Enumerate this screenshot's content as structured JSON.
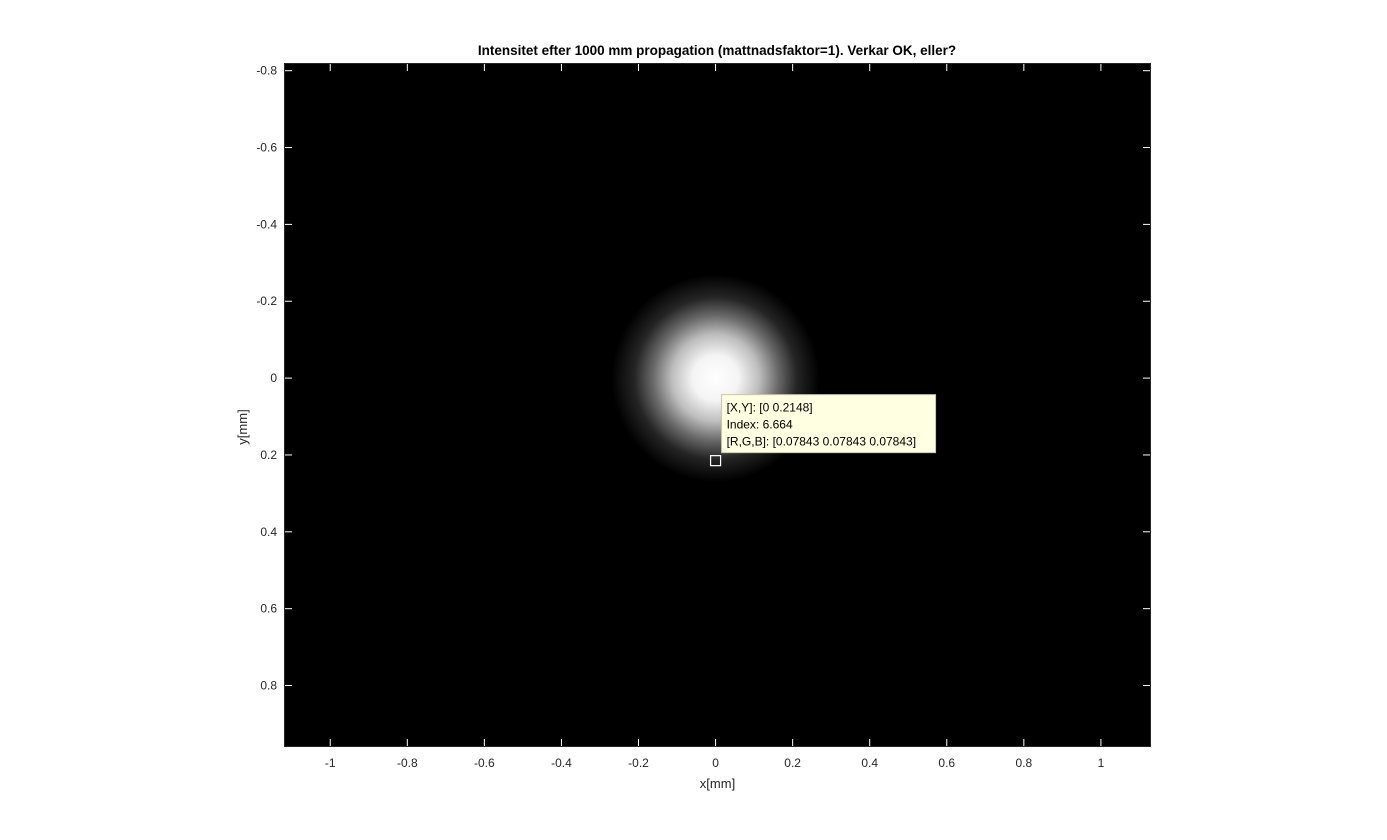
{
  "chart_data": {
    "type": "heatmap",
    "title": "Intensitet efter 1000 mm propagation (mattnadsfaktor=1). Verkar OK, eller?",
    "xlabel": "x[mm]",
    "ylabel": "y[mm]",
    "xlim": [
      -1.12,
      1.13
    ],
    "ylim": [
      -0.82,
      0.96
    ],
    "y_direction": "reverse",
    "x_ticks": [
      -1,
      -0.8,
      -0.6,
      -0.4,
      -0.2,
      0,
      0.2,
      0.4,
      0.6,
      0.8,
      1
    ],
    "y_ticks": [
      -0.8,
      -0.6,
      -0.4,
      -0.2,
      0,
      0.2,
      0.4,
      0.6,
      0.8
    ],
    "x_tick_labels": [
      "-1",
      "-0.8",
      "-0.6",
      "-0.4",
      "-0.2",
      "0",
      "0.2",
      "0.4",
      "0.6",
      "0.8",
      "1"
    ],
    "y_tick_labels": [
      "-0.8",
      "-0.6",
      "-0.4",
      "-0.2",
      "0",
      "0.2",
      "0.4",
      "0.6",
      "0.8"
    ],
    "colormap": "gray",
    "background_color": "#000000",
    "beam": {
      "center_x": 0,
      "center_y": 0,
      "bright_radius": 0.18,
      "outer_radius": 0.27
    },
    "datatip": {
      "x": 0,
      "y": 0.2148,
      "lines": [
        "[X,Y]: [0 0.2148]",
        "Index: 6.664",
        "[R,G,B]: [0.07843 0.07843 0.07843]"
      ]
    }
  }
}
